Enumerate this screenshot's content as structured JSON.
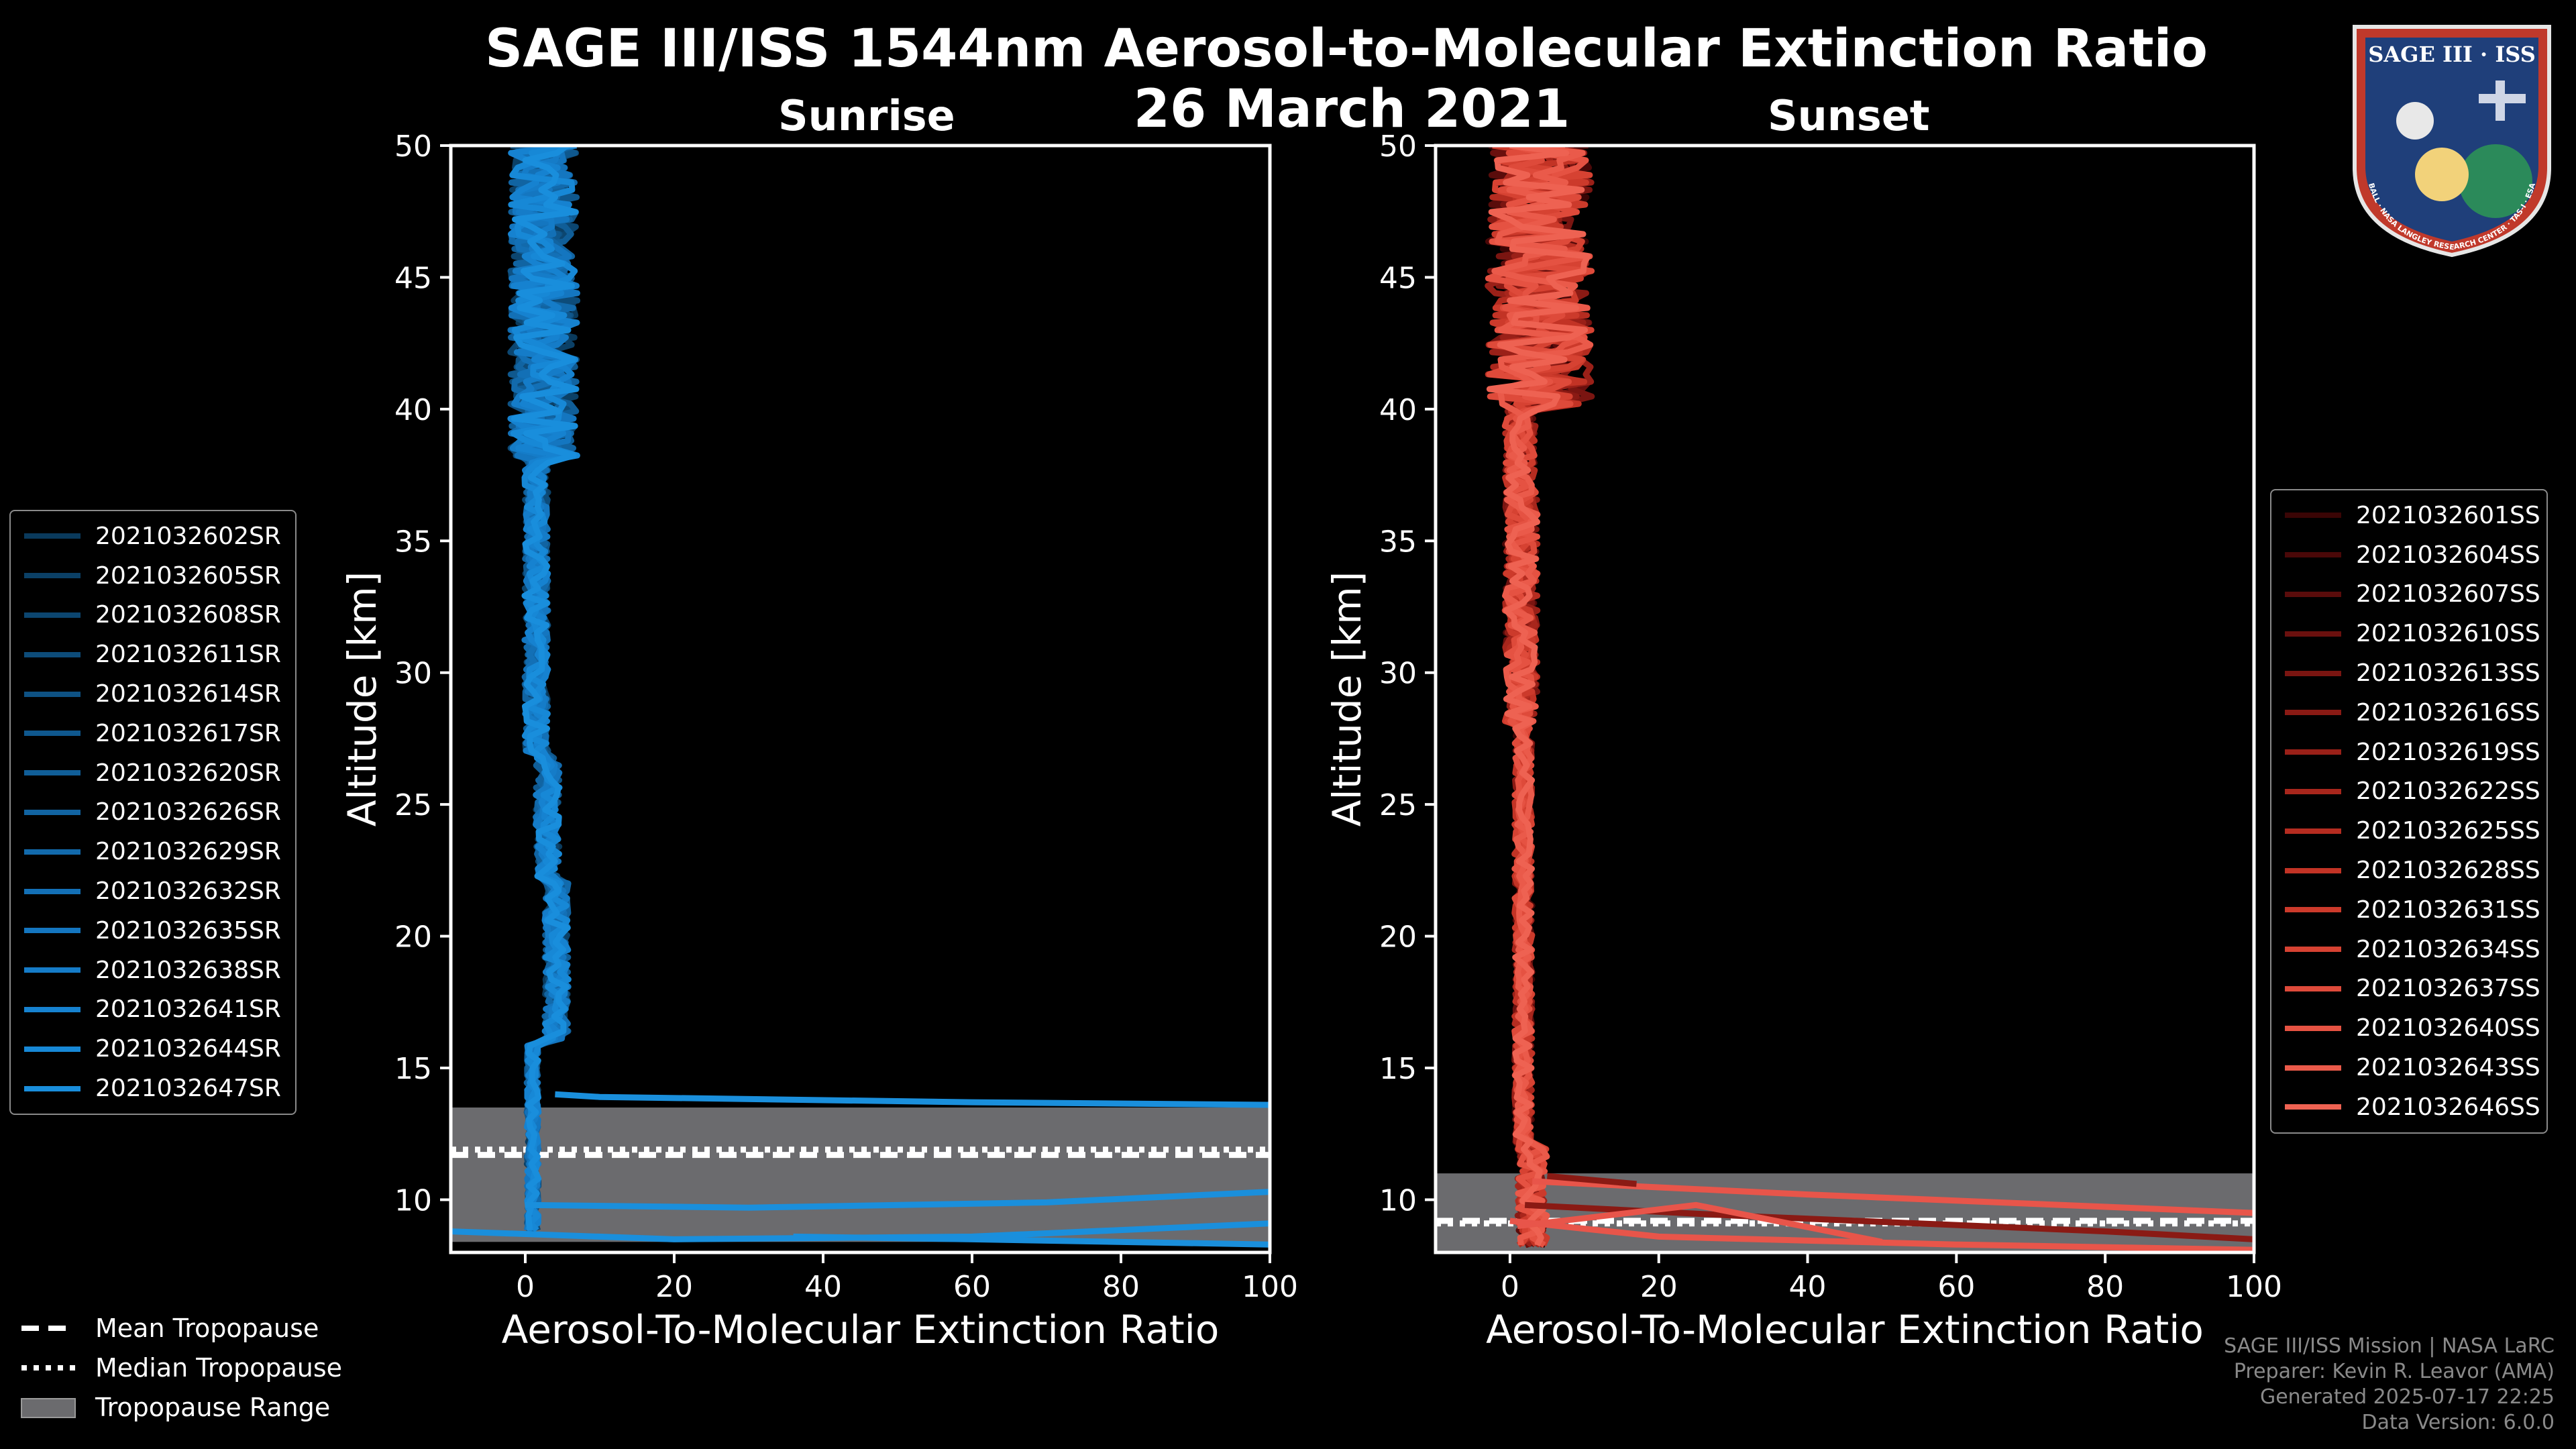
{
  "title": "SAGE III/ISS 1544nm Aerosol-to-Molecular Extinction Ratio",
  "date": "26 March 2021",
  "panels": {
    "sunrise": {
      "title": "Sunrise"
    },
    "sunset": {
      "title": "Sunset"
    }
  },
  "chart_data": [
    {
      "type": "line",
      "title": "Sunrise",
      "xlabel": "Aerosol-To-Molecular Extinction Ratio",
      "ylabel": "Altitude [km]",
      "xlim": [
        -10,
        100
      ],
      "ylim": [
        8,
        50
      ],
      "xticks": [
        0,
        20,
        40,
        60,
        80,
        100
      ],
      "yticks": [
        10,
        15,
        20,
        25,
        30,
        35,
        40,
        45,
        50
      ],
      "tropopause": {
        "min": 8.4,
        "max": 13.5,
        "mean": 11.7,
        "median": 11.9
      },
      "series": [
        {
          "name": "2021032602SR",
          "color": "#0a3a5c"
        },
        {
          "name": "2021032605SR",
          "color": "#0b4066"
        },
        {
          "name": "2021032608SR",
          "color": "#0c4670"
        },
        {
          "name": "2021032611SR",
          "color": "#0d4c7a"
        },
        {
          "name": "2021032614SR",
          "color": "#0e5284"
        },
        {
          "name": "2021032617SR",
          "color": "#0f588e"
        },
        {
          "name": "2021032620SR",
          "color": "#105e98"
        },
        {
          "name": "2021032626SR",
          "color": "#1164a2"
        },
        {
          "name": "2021032629SR",
          "color": "#126aac"
        },
        {
          "name": "2021032632SR",
          "color": "#1370b6"
        },
        {
          "name": "2021032635SR",
          "color": "#1476c0"
        },
        {
          "name": "2021032638SR",
          "color": "#157cc8"
        },
        {
          "name": "2021032641SR",
          "color": "#1682d0"
        },
        {
          "name": "2021032644SR",
          "color": "#1788d6"
        },
        {
          "name": "2021032647SR",
          "color": "#198edc"
        }
      ],
      "extra_lines": [
        {
          "x": [
            4,
            10,
            60,
            100
          ],
          "y": [
            14,
            13.9,
            13.7,
            13.6
          ]
        },
        {
          "x": [
            0,
            30,
            70,
            100
          ],
          "y": [
            9.8,
            9.7,
            9.9,
            10.3
          ]
        },
        {
          "x": [
            -10,
            20,
            60,
            100
          ],
          "y": [
            8.8,
            8.5,
            8.6,
            9.1
          ]
        },
        {
          "x": [
            36,
            60,
            100
          ],
          "y": [
            8.6,
            8.5,
            8.3
          ]
        }
      ]
    },
    {
      "type": "line",
      "title": "Sunset",
      "xlabel": "Aerosol-To-Molecular Extinction Ratio",
      "ylabel": "Altitude [km]",
      "xlim": [
        -10,
        100
      ],
      "ylim": [
        8,
        50
      ],
      "xticks": [
        0,
        20,
        40,
        60,
        80,
        100
      ],
      "yticks": [
        10,
        15,
        20,
        25,
        30,
        35,
        40,
        45,
        50
      ],
      "tropopause": {
        "min": 8.0,
        "max": 11.0,
        "mean": 9.2,
        "median": 9.1
      },
      "series": [
        {
          "name": "2021032601SS",
          "color": "#3a0505"
        },
        {
          "name": "2021032604SS",
          "color": "#4a0808"
        },
        {
          "name": "2021032607SS",
          "color": "#5a0c0b"
        },
        {
          "name": "2021032610SS",
          "color": "#6a100e"
        },
        {
          "name": "2021032613SS",
          "color": "#7a1511"
        },
        {
          "name": "2021032616SS",
          "color": "#8a1a14"
        },
        {
          "name": "2021032619SS",
          "color": "#9a2018"
        },
        {
          "name": "2021032622SS",
          "color": "#a8261c"
        },
        {
          "name": "2021032625SS",
          "color": "#b52c20"
        },
        {
          "name": "2021032628SS",
          "color": "#c23325"
        },
        {
          "name": "2021032631SS",
          "color": "#cc3a2b"
        },
        {
          "name": "2021032634SS",
          "color": "#d64232"
        },
        {
          "name": "2021032637SS",
          "color": "#de4a3a"
        },
        {
          "name": "2021032640SS",
          "color": "#e55242"
        },
        {
          "name": "2021032643SS",
          "color": "#ea5a4a"
        },
        {
          "name": "2021032646SS",
          "color": "#ee6252"
        }
      ],
      "extra_lines": [
        {
          "x": [
            3,
            40,
            100
          ],
          "y": [
            10.7,
            10.2,
            9.5
          ]
        },
        {
          "x": [
            2,
            30,
            80,
            100
          ],
          "y": [
            9.8,
            9.4,
            8.8,
            8.5
          ]
        },
        {
          "x": [
            0,
            20,
            60,
            100
          ],
          "y": [
            9.2,
            8.6,
            8.3,
            8.1
          ]
        },
        {
          "x": [
            5,
            17
          ],
          "y": [
            10.9,
            10.6
          ]
        },
        {
          "x": [
            1,
            25,
            50
          ],
          "y": [
            9.0,
            9.8,
            8.4
          ]
        }
      ]
    }
  ],
  "bottom_legend": {
    "mean": "Mean Tropopause",
    "median": "Median Tropopause",
    "range": "Tropopause Range"
  },
  "badge": {
    "title": "SAGE III · ISS",
    "ring_text": "BALL · NASA LANGLEY RESEARCH CENTER · TAS-I · ESA"
  },
  "credits": {
    "line1": "SAGE III/ISS Mission | NASA LaRC",
    "line2": "Preparer: Kevin R. Leavor (AMA)",
    "line3": "Generated 2025-07-17 22:25",
    "line4": "Data Version: 6.0.0"
  },
  "colors": {
    "sunrise": "#1a8fdc",
    "sunset": "#e8554a",
    "tropopause_fill": "#6b6b6e",
    "axes": "#ffffff"
  }
}
